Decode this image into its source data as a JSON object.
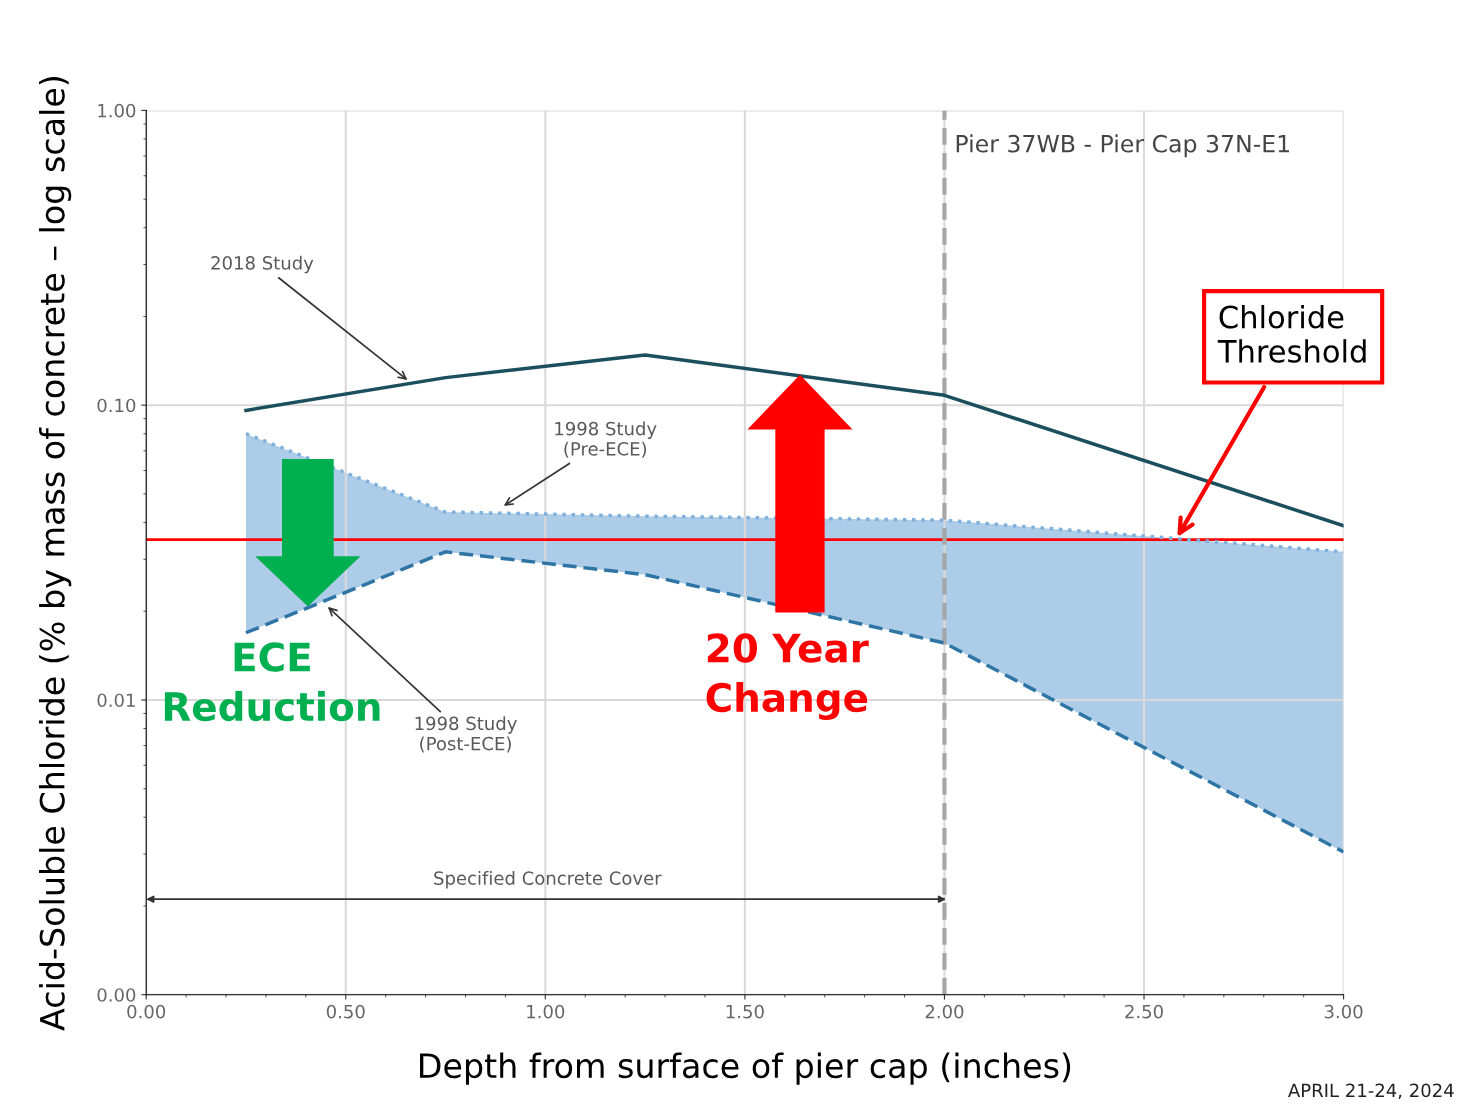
{
  "chart_data": {
    "type": "line",
    "xlabel": "Depth from surface of pier cap (inches)",
    "ylabel": "Acid-Soluble Chloride (% by mass of concrete – log scale)",
    "x": [
      0.25,
      0.75,
      1.25,
      2.0,
      3.0
    ],
    "series": [
      {
        "color": "#1b4f5e",
        "line_style": "solid",
        "values": [
          0.096,
          0.124,
          0.148,
          0.108,
          0.039
        ]
      },
      {
        "color": "#7fb0dc",
        "line_style": "dotted",
        "values": [
          0.08,
          0.0434,
          0.042,
          0.0407,
          0.0318
        ],
        "lower": [
          0.0169,
          0.0318,
          0.0266,
          0.0156,
          0.00305
        ],
        "upper": [
          0.08,
          0.0434,
          0.042,
          0.0407,
          0.0318
        ]
      },
      {
        "color": "#2e75a6",
        "line_style": "dashed",
        "values": [
          0.0169,
          0.0318,
          0.0266,
          0.0156,
          0.00305
        ]
      }
    ],
    "log": "y",
    "xlim": [
      0,
      3
    ],
    "xticks": [
      {
        "value": 0,
        "label": "0.00"
      },
      {
        "value": 0.5,
        "label": "0.50"
      },
      {
        "value": 1,
        "label": "1.00"
      },
      {
        "value": 1.5,
        "label": "1.50"
      },
      {
        "value": 2,
        "label": "2.00"
      },
      {
        "value": 2.5,
        "label": "2.50"
      },
      {
        "value": 3,
        "label": "3.00"
      }
    ],
    "ylim": [
      0.001,
      1
    ],
    "yticks": [
      {
        "value": 0.001,
        "label": "0.00"
      },
      {
        "value": 0.01,
        "label": "0.01"
      },
      {
        "value": 0.1,
        "label": "0.10"
      },
      {
        "value": 1,
        "label": "1.00"
      }
    ],
    "grid": true,
    "marker": "none",
    "ref_lines": [
      {
        "axis": "y",
        "value": 0.035,
        "label": "Chloride\nThreshold",
        "color": "#ff0000",
        "line_style": "solid"
      },
      {
        "axis": "x",
        "value": 2.0,
        "label": null,
        "color": "#a6a6a6",
        "line_style": "dashed"
      }
    ],
    "annotations": [
      "Pier 37WB - Pier Cap 37N-E1",
      {
        "text": "2018 Study",
        "x": 0.66,
        "y": 0.12
      },
      {
        "text": "1998 Study\n(Pre-ECE)",
        "x": 0.89,
        "y": 0.045
      },
      {
        "text": "1998 Study\n(Post-ECE)",
        "x": 0.45,
        "y": 0.021
      },
      "Specified Concrete Cover",
      "ECE\nReduction",
      "20 Year\nChange",
      "APRIL 21-24, 2024"
    ]
  }
}
